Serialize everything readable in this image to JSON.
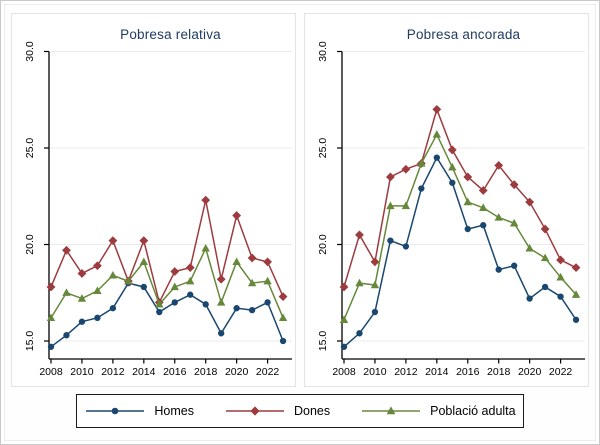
{
  "figure": {
    "background": "#fefefe",
    "title_color": "#1e3a5f",
    "axis_color": "#000000",
    "grid_color": "#ebebeb",
    "legend": {
      "position": "bottom-center",
      "border_color": "#1a1a1a",
      "items": [
        {
          "label": "Homes",
          "color": "#1a476f",
          "marker": "circle"
        },
        {
          "label": "Dones",
          "color": "#9d3b3f",
          "marker": "diamond"
        },
        {
          "label": "Població adulta",
          "color": "#66883a",
          "marker": "triangle"
        }
      ]
    }
  },
  "chart_data": [
    {
      "type": "line",
      "title": "Pobresa relativa",
      "x": [
        2008,
        2009,
        2010,
        2011,
        2012,
        2013,
        2014,
        2015,
        2016,
        2017,
        2018,
        2019,
        2020,
        2021,
        2022,
        2023
      ],
      "x_tick_labels": [
        "2008",
        "2010",
        "2012",
        "2014",
        "2016",
        "2018",
        "2020",
        "2022"
      ],
      "y_ticks": [
        15,
        20,
        25,
        30
      ],
      "y_tick_labels": [
        "15.0",
        "20.0",
        "25.0",
        "30.0"
      ],
      "ylim": [
        14,
        31
      ],
      "grid": true,
      "legend_position": "bottom",
      "series": [
        {
          "name": "Homes",
          "color": "#1a476f",
          "marker": "circle",
          "values": [
            14.7,
            15.3,
            16.0,
            16.2,
            16.7,
            18.0,
            17.8,
            16.5,
            17.0,
            17.4,
            16.9,
            15.4,
            16.7,
            16.6,
            17.0,
            15.0
          ]
        },
        {
          "name": "Dones",
          "color": "#9d3b3f",
          "marker": "diamond",
          "values": [
            17.8,
            19.7,
            18.5,
            18.9,
            20.2,
            18.1,
            20.2,
            17.0,
            18.6,
            18.8,
            22.3,
            18.2,
            21.5,
            19.3,
            19.1,
            17.3
          ]
        },
        {
          "name": "Població adulta",
          "color": "#66883a",
          "marker": "triangle",
          "values": [
            16.2,
            17.5,
            17.2,
            17.6,
            18.4,
            18.1,
            19.1,
            16.9,
            17.8,
            18.1,
            19.8,
            17.0,
            19.1,
            18.0,
            18.1,
            16.2
          ]
        }
      ]
    },
    {
      "type": "line",
      "title": "Pobresa ancorada",
      "x": [
        2008,
        2009,
        2010,
        2011,
        2012,
        2013,
        2014,
        2015,
        2016,
        2017,
        2018,
        2019,
        2020,
        2021,
        2022,
        2023
      ],
      "x_tick_labels": [
        "2008",
        "2010",
        "2012",
        "2014",
        "2016",
        "2018",
        "2020",
        "2022"
      ],
      "y_ticks": [
        15,
        20,
        25,
        30
      ],
      "y_tick_labels": [
        "15.0",
        "20.0",
        "25.0",
        "30.0"
      ],
      "ylim": [
        14,
        31
      ],
      "grid": true,
      "legend_position": "bottom",
      "series": [
        {
          "name": "Homes",
          "color": "#1a476f",
          "marker": "circle",
          "values": [
            14.7,
            15.4,
            16.5,
            20.2,
            19.9,
            22.9,
            24.5,
            23.2,
            20.8,
            21.0,
            18.7,
            18.9,
            17.2,
            17.8,
            17.3,
            16.1
          ]
        },
        {
          "name": "Dones",
          "color": "#9d3b3f",
          "marker": "diamond",
          "values": [
            17.8,
            20.5,
            19.1,
            23.5,
            23.9,
            24.2,
            27.0,
            24.9,
            23.5,
            22.8,
            24.1,
            23.1,
            22.2,
            20.8,
            19.2,
            18.8
          ]
        },
        {
          "name": "Població adulta",
          "color": "#66883a",
          "marker": "triangle",
          "values": [
            16.1,
            18.0,
            17.9,
            22.0,
            22.0,
            24.2,
            25.7,
            24.0,
            22.2,
            21.9,
            21.4,
            21.1,
            19.8,
            19.3,
            18.3,
            17.4
          ]
        }
      ]
    }
  ]
}
